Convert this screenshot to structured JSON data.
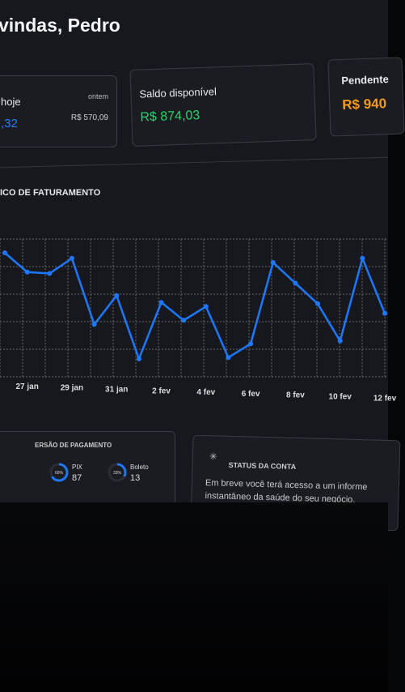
{
  "header": {
    "title": "vindas, Pedro"
  },
  "cards": [
    {
      "label": "hoje",
      "sublabel": "ontem",
      "value": ",32",
      "subvalue": "R$ 570,09"
    },
    {
      "label": "Saldo disponível",
      "value": "R$ 874,03"
    },
    {
      "label": "Pendente",
      "value": "R$ 940"
    }
  ],
  "chart_data": {
    "type": "line",
    "title": "ICO DE FATURAMENTO",
    "categories": [
      null,
      "27 jan",
      null,
      "29 jan",
      null,
      "31 jan",
      null,
      "2 fev",
      null,
      "4 fev",
      null,
      "6 fev",
      null,
      "8 fev",
      null,
      "10 fev",
      null,
      "12 fev"
    ],
    "series": [
      {
        "name": "Faturamento",
        "color": "#1e78ff",
        "values": [
          90,
          76,
          75,
          86,
          38,
          59,
          13,
          54,
          41,
          51,
          14,
          24,
          83,
          68,
          53,
          26,
          86,
          46
        ]
      }
    ],
    "ylim": [
      0,
      100
    ],
    "grid": true
  },
  "conversion": {
    "title": "ERSÃO DE PAGAMENTO",
    "items": [
      {
        "percent": 66,
        "percent_label": "66%",
        "name": "PIX",
        "count": "87"
      },
      {
        "percent": 33,
        "percent_label": "33%",
        "name": "Boleto",
        "count": "13"
      }
    ]
  },
  "status": {
    "title": "STATUS DA CONTA",
    "text": "Em breve você terá acesso a um informe instantâneo da saúde do seu negócio."
  }
}
